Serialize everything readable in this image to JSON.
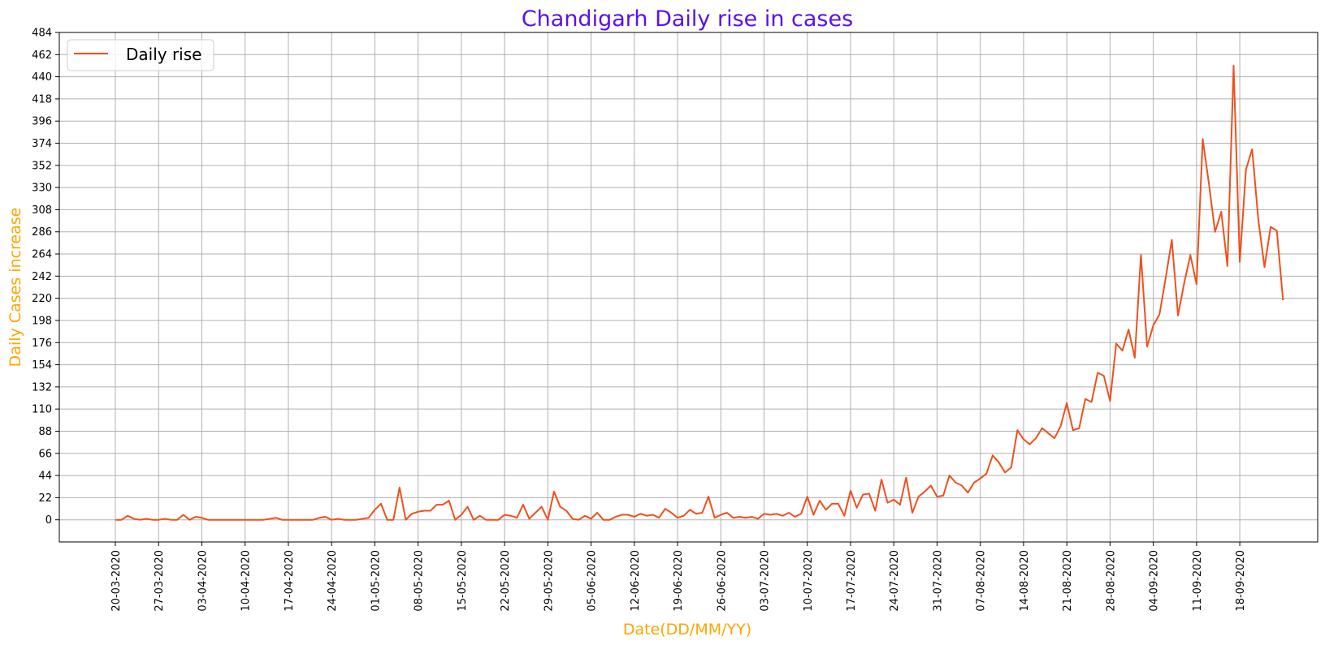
{
  "chart_data": {
    "type": "line",
    "title": "Chandigarh Daily rise in cases",
    "xlabel": "Date(DD/MM/YY)",
    "ylabel": "Daily Cases increase",
    "x_tick_labels": [
      "20-03-2020",
      "27-03-2020",
      "03-04-2020",
      "10-04-2020",
      "17-04-2020",
      "24-04-2020",
      "01-05-2020",
      "08-05-2020",
      "15-05-2020",
      "22-05-2020",
      "29-05-2020",
      "05-06-2020",
      "12-06-2020",
      "19-06-2020",
      "26-06-2020",
      "03-07-2020",
      "10-07-2020",
      "17-07-2020",
      "24-07-2020",
      "31-07-2020",
      "07-08-2020",
      "14-08-2020",
      "21-08-2020",
      "28-08-2020",
      "04-09-2020",
      "11-09-2020",
      "18-09-2020"
    ],
    "ylim": [
      -22,
      484
    ],
    "y_ticks": [
      0,
      22,
      44,
      66,
      88,
      110,
      132,
      154,
      176,
      198,
      220,
      242,
      264,
      286,
      308,
      330,
      352,
      374,
      396,
      418,
      440,
      462,
      484
    ],
    "grid": true,
    "legend_position": "top-left",
    "colors": {
      "title": "#5b12e8",
      "axis_label": "#ffa500",
      "line": "#f0501e",
      "grid": "#b0b0b0"
    },
    "x_start": "20-03-2020",
    "series": [
      {
        "name": "Daily rise",
        "values": [
          0,
          0,
          4,
          1,
          0,
          1,
          0,
          0,
          1,
          0,
          0,
          5,
          0,
          3,
          2,
          0,
          0,
          0,
          0,
          0,
          0,
          0,
          0,
          0,
          0,
          1,
          2,
          0,
          0,
          0,
          0,
          0,
          0,
          2,
          3,
          0,
          1,
          0,
          0,
          0,
          1,
          2,
          10,
          16,
          0,
          0,
          32,
          0,
          6,
          8,
          9,
          9,
          15,
          15,
          19,
          0,
          5,
          13,
          0,
          4,
          0,
          0,
          0,
          5,
          4,
          2,
          15,
          1,
          7,
          13,
          0,
          28,
          13,
          9,
          1,
          0,
          4,
          1,
          7,
          0,
          0,
          3,
          5,
          5,
          3,
          6,
          4,
          5,
          2,
          11,
          7,
          2,
          4,
          10,
          6,
          7,
          23,
          2,
          5,
          7,
          2,
          3,
          2,
          3,
          1,
          6,
          5,
          6,
          4,
          7,
          3,
          6,
          23,
          5,
          19,
          10,
          16,
          16,
          4,
          29,
          12,
          25,
          26,
          9,
          40,
          17,
          20,
          15,
          42,
          7,
          23,
          28,
          34,
          23,
          24,
          44,
          37,
          34,
          27,
          37,
          41,
          46,
          64,
          57,
          47,
          52,
          89,
          80,
          75,
          81,
          91,
          86,
          81,
          93,
          116,
          89,
          91,
          120,
          117,
          146,
          143,
          118,
          175,
          168,
          189,
          161,
          263,
          172,
          193,
          204,
          240,
          278,
          203,
          235,
          263,
          234,
          378,
          334,
          286,
          306,
          252,
          451,
          256,
          348,
          368,
          298,
          251,
          291,
          287,
          218
        ]
      }
    ]
  }
}
